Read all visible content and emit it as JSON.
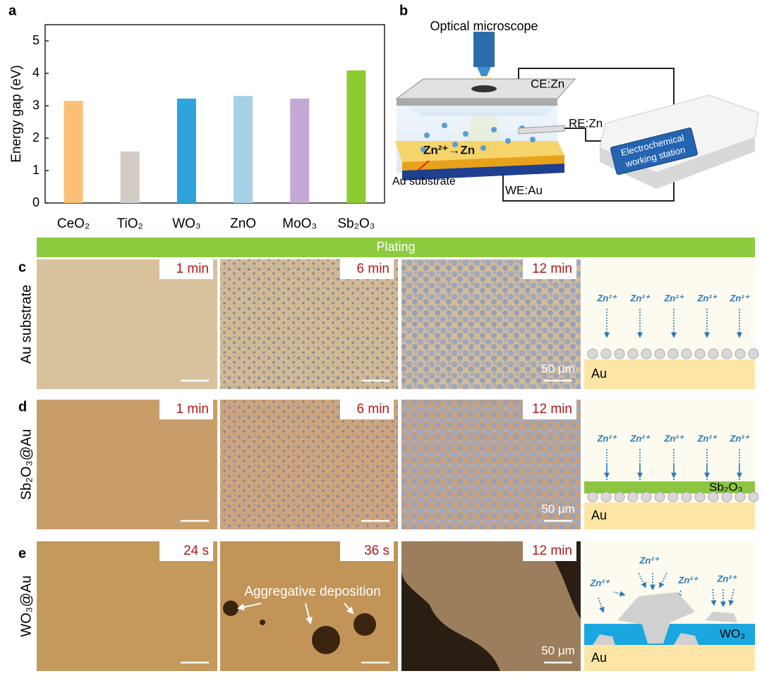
{
  "panel_labels": [
    "a",
    "b",
    "c",
    "d",
    "e"
  ],
  "chart_data": {
    "type": "bar",
    "y_label": "Energy gap (eV)",
    "categories": [
      "CeO₂",
      "TiO₂",
      "WO₃",
      "ZnO",
      "MoO₃",
      "Sb₂O₃"
    ],
    "values": [
      3.15,
      1.59,
      3.22,
      3.3,
      3.22,
      4.09
    ],
    "colors": [
      "#fbbf77",
      "#d3cbc6",
      "#2ea3dc",
      "#a6d0e6",
      "#c3a9d3",
      "#8ccc2e"
    ],
    "ylim": [
      0,
      5.5
    ],
    "yticks": [
      0,
      1,
      2,
      3,
      4,
      5
    ]
  },
  "setup": {
    "microscope": "Optical microscope",
    "counter": "CE:Zn",
    "reference": "RE:Zn",
    "working": "WE:Au",
    "station": [
      "Electrochemical",
      "working station"
    ],
    "reaction": "Zn²⁺→Zn",
    "substrate": "Au substrate"
  },
  "plating": "Plating",
  "rows": [
    {
      "label": "Au substrate",
      "times": [
        "1 min",
        "6 min",
        "12 min"
      ],
      "scale": "50 μm",
      "ion": "Zn²⁺",
      "base": "Au"
    },
    {
      "label": "Sb₂O₃@Au",
      "times": [
        "1 min",
        "6 min",
        "12 min"
      ],
      "scale": "50 μm",
      "ion": "Zn²⁺",
      "layer": "Sb₂O₃",
      "base": "Au"
    },
    {
      "label": "WO₃@Au",
      "times": [
        "24 s",
        "36 s",
        "12 min"
      ],
      "scale": "50 μm",
      "annotation": "Aggregative deposition",
      "ion": "Zn²⁺",
      "layer": "WO₃",
      "base": "Au"
    }
  ]
}
